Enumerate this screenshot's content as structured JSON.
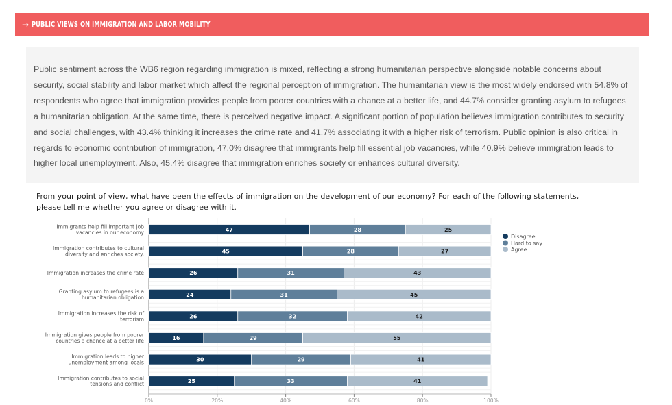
{
  "section": {
    "arrow_icon": "→",
    "title": "PUBLIC VIEWS ON IMMIGRATION AND LABOR MOBILITY",
    "accent_color": "#f05d5e"
  },
  "summary": {
    "text": "Public sentiment across the WB6 region regarding immigration is mixed, reflecting a strong humanitarian perspective alongside notable concerns about security, social stability and labor market which affect the regional perception of immigration. The humanitarian view is the most widely endorsed with 54.8% of respondents who agree that immigration provides people from poorer countries with a chance at a better life, and 44.7% consider granting asylum to refugees a humanitarian obligation. At the same time, there is perceived negative impact. A significant portion of population believes immigration contributes to security and social challenges, with 43.4% thinking it increases the crime rate and 41.7% associating it with a higher risk of terrorism. Public opinion is also critical in regards to economic contribution of immigration, 47.0% disagree that immigrants help fill essential job vacancies, while 40.9% believe immigration leads to higher local unemployment. Also, 45.4% disagree that immigration enriches society or enhances cultural diversity."
  },
  "question": {
    "text": "From your point of view, what have been the effects of immigration on the development of our economy? For each of the following statements, please tell me whether you agree or disagree with it."
  },
  "chart_data": {
    "type": "bar",
    "orientation": "horizontal",
    "stacked": "percent",
    "title": "",
    "xlabel": "",
    "ylabel": "",
    "xlim": [
      0,
      100
    ],
    "x_ticks": [
      "0%",
      "20%",
      "40%",
      "60%",
      "80%",
      "100%"
    ],
    "grid": true,
    "legend_position": "right",
    "categories": [
      [
        "Immigrants help fill important job",
        "vacancies in our economy"
      ],
      [
        "Immigration contributes to cultural",
        "diversity and enriches society."
      ],
      [
        "Immigration increases the crime rate"
      ],
      [
        "Granting asylum to refugees is a",
        "humanitarian obligation"
      ],
      [
        "Immigration increases the risk of",
        "terrorism"
      ],
      [
        "Immigration gives people from poorer",
        "countries a chance at a better life"
      ],
      [
        "Immigration leads to higher",
        "unemployment among locals"
      ],
      [
        "Immigration contributes to social",
        "tensions and conflict"
      ]
    ],
    "series": [
      {
        "name": "Disagree",
        "color": "#143b5f",
        "label_color": "#ffffff",
        "values": [
          47,
          45,
          26,
          24,
          26,
          16,
          30,
          25
        ]
      },
      {
        "name": "Hard to say",
        "color": "#5f7f9a",
        "label_color": "#ffffff",
        "values": [
          28,
          28,
          31,
          31,
          32,
          29,
          29,
          33
        ]
      },
      {
        "name": "Agree",
        "color": "#aabbca",
        "label_color": "#1a1a1a",
        "values": [
          25,
          27,
          43,
          45,
          42,
          55,
          41,
          41
        ]
      }
    ]
  }
}
